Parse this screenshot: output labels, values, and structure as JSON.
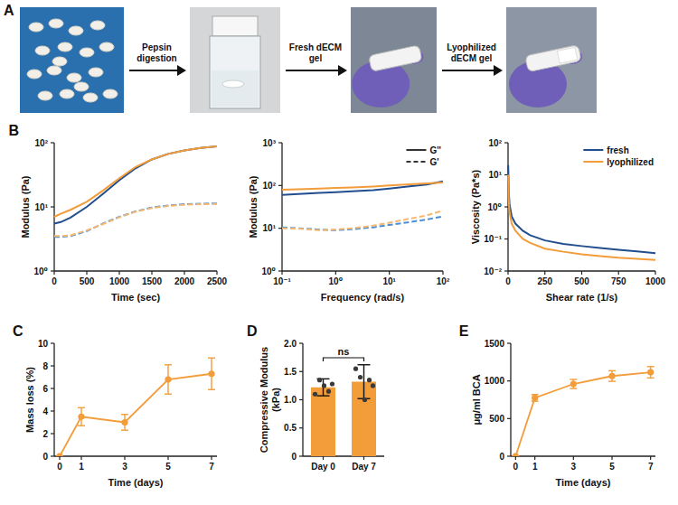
{
  "diagram": {
    "panel": "A",
    "steps": [
      "Pepsin digestion",
      "Fresh dECM gel",
      "Lyophilized dECM gel"
    ]
  },
  "chart_data": [
    {
      "panel": "B",
      "type": "line",
      "log": "y",
      "xlabel": "Time (sec)",
      "ylabel": "Modulus (Pa)",
      "x": [
        0,
        100,
        250,
        500,
        750,
        1000,
        1250,
        1500,
        1750,
        2000,
        2250,
        2500
      ],
      "xlim": [
        0,
        2500
      ],
      "xticks": [
        0,
        500,
        1000,
        1500,
        2000,
        2500
      ],
      "ylim": [
        1,
        100
      ],
      "yticks": [
        {
          "value": 1,
          "label": "10⁰"
        },
        {
          "value": 10,
          "label": "10¹"
        },
        {
          "value": 100,
          "label": "10²"
        }
      ],
      "series": [
        {
          "color": "#234e8e",
          "line_style": "solid",
          "values": [
            5.5,
            5.8,
            6.8,
            10,
            16,
            26,
            40,
            55,
            67,
            76,
            83,
            88
          ]
        },
        {
          "color": "#f39c3a",
          "line_style": "solid",
          "values": [
            7,
            7.8,
            9,
            12,
            18,
            28,
            42,
            55,
            67,
            76,
            83,
            88
          ]
        },
        {
          "color": "#4a8fd6",
          "line_style": "dashed",
          "values": [
            3.4,
            3.4,
            3.5,
            4.2,
            5.5,
            7,
            8.5,
            9.8,
            10.5,
            11,
            11.2,
            11.3
          ]
        },
        {
          "color": "#f6b870",
          "line_style": "dashed",
          "values": [
            3.5,
            3.5,
            3.6,
            4.3,
            5.4,
            6.9,
            8.4,
            9.6,
            10.3,
            10.8,
            11,
            11.1
          ]
        }
      ]
    },
    {
      "type": "line",
      "log": true,
      "xlabel": "Frequency (rad/s)",
      "ylabel": "Modulus (Pa)",
      "x": [
        0.1,
        0.2,
        0.5,
        1,
        2,
        5,
        10,
        20,
        50,
        100
      ],
      "xlim": [
        0.1,
        100
      ],
      "xticks": [
        {
          "value": 0.1,
          "label": "10⁻¹"
        },
        {
          "value": 1,
          "label": "10⁰"
        },
        {
          "value": 10,
          "label": "10¹"
        },
        {
          "value": 100,
          "label": "10²"
        }
      ],
      "ylim": [
        1,
        1000
      ],
      "yticks": [
        {
          "value": 1,
          "label": "10⁰"
        },
        {
          "value": 10,
          "label": "10¹"
        },
        {
          "value": 100,
          "label": "10²"
        },
        {
          "value": 1000,
          "label": "10³"
        }
      ],
      "legend": "top-right",
      "legend_items": [
        {
          "name": "G''",
          "line_style": "solid",
          "color": "#333333"
        },
        {
          "name": "G'",
          "line_style": "dashed",
          "color": "#333333"
        }
      ],
      "series": [
        {
          "color": "#234e8e",
          "line_style": "solid",
          "values": [
            60,
            63,
            67,
            70,
            73,
            78,
            85,
            93,
            105,
            125
          ]
        },
        {
          "color": "#f39c3a",
          "line_style": "solid",
          "values": [
            80,
            82,
            85,
            88,
            90,
            95,
            100,
            105,
            112,
            118
          ]
        },
        {
          "color": "#4a8fd6",
          "line_style": "dashed",
          "values": [
            10.5,
            10,
            9.3,
            9,
            9.5,
            10.5,
            12,
            13.5,
            16,
            19
          ]
        },
        {
          "color": "#f6b870",
          "line_style": "dashed",
          "values": [
            10,
            9.8,
            9,
            9.3,
            10,
            11.5,
            13.5,
            16,
            20,
            26
          ]
        }
      ]
    },
    {
      "type": "line",
      "log": "y",
      "xlabel": "Shear rate (1/s)",
      "ylabel": "Viscosity (Pa*s)",
      "x": [
        1,
        5,
        10,
        25,
        50,
        100,
        150,
        250,
        375,
        500,
        625,
        750,
        875,
        1000
      ],
      "xlim": [
        0,
        1000
      ],
      "xticks": [
        0,
        250,
        500,
        750,
        1000
      ],
      "ylim": [
        0.01,
        100
      ],
      "yticks": [
        {
          "value": 0.01,
          "label": "10⁻²"
        },
        {
          "value": 0.1,
          "label": "10⁻¹"
        },
        {
          "value": 1,
          "label": "10⁰"
        },
        {
          "value": 10,
          "label": "10¹"
        },
        {
          "value": 100,
          "label": "10²"
        }
      ],
      "legend": "top-right",
      "series": [
        {
          "name": "fresh",
          "color": "#234e8e",
          "line_style": "solid",
          "values": [
            20,
            3,
            1.2,
            0.5,
            0.3,
            0.18,
            0.13,
            0.09,
            0.07,
            0.06,
            0.052,
            0.046,
            0.041,
            0.036
          ]
        },
        {
          "name": "lyophilized",
          "color": "#f39c3a",
          "line_style": "solid",
          "values": [
            10,
            1.5,
            0.7,
            0.3,
            0.18,
            0.1,
            0.075,
            0.05,
            0.04,
            0.033,
            0.029,
            0.026,
            0.024,
            0.022
          ]
        }
      ]
    },
    {
      "panel": "C",
      "type": "line",
      "marker": "circle",
      "color": "#f39c3a",
      "xlabel": "Time (days)",
      "ylabel": "Mass loss (%)",
      "x": [
        0,
        1,
        3,
        5,
        7
      ],
      "values": [
        0,
        3.5,
        3.0,
        6.8,
        7.3
      ],
      "errors": [
        0,
        0.8,
        0.7,
        1.3,
        1.4
      ],
      "xlim": [
        -0.25,
        7.25
      ],
      "xticks": [
        0,
        1,
        3,
        5,
        7
      ],
      "ylim": [
        0,
        10
      ],
      "yticks": [
        0,
        2,
        4,
        6,
        8,
        10
      ]
    },
    {
      "panel": "D",
      "type": "bar",
      "color": "#f39c3a",
      "ylabel": "Compressive Modulus (kPa)",
      "categories": [
        "Day 0",
        "Day 7"
      ],
      "values": [
        1.22,
        1.32
      ],
      "errors": [
        0.15,
        0.3
      ],
      "points": [
        [
          1.1,
          1.35,
          1.25,
          1.15,
          1.28
        ],
        [
          1.55,
          1.4,
          1.0,
          1.35,
          1.25
        ]
      ],
      "ylim": [
        0,
        2
      ],
      "yticks": [
        0,
        0.5,
        {
          "value": 1,
          "label": "1.0"
        },
        1.5,
        {
          "value": 2,
          "label": "2.0"
        }
      ],
      "annotation": "ns"
    },
    {
      "panel": "E",
      "type": "line",
      "marker": "circle",
      "color": "#f39c3a",
      "xlabel": "Time (days)",
      "ylabel": "μg/ml BCA",
      "x": [
        0,
        1,
        3,
        5,
        7
      ],
      "values": [
        0,
        775,
        960,
        1065,
        1115
      ],
      "errors": [
        0,
        45,
        60,
        70,
        75
      ],
      "xlim": [
        -0.25,
        7.25
      ],
      "xticks": [
        0,
        1,
        3,
        5,
        7
      ],
      "ylim": [
        0,
        1500
      ],
      "yticks": [
        0,
        500,
        1000,
        1500
      ]
    }
  ]
}
